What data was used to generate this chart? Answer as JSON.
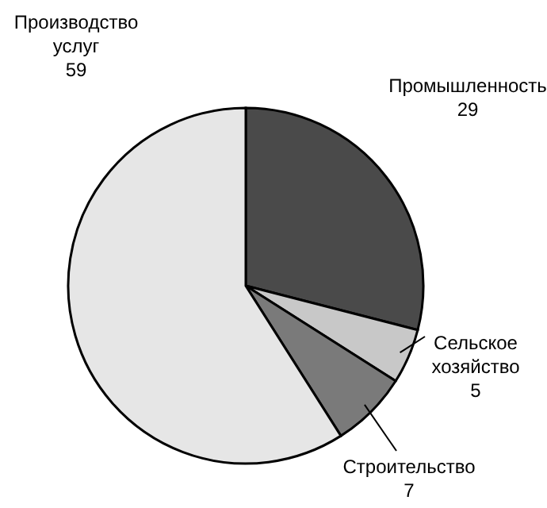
{
  "chart_data": {
    "type": "pie",
    "categories": [
      "Промышленность",
      "Сельское хозяйство",
      "Строительство",
      "Производство услуг"
    ],
    "values": [
      29,
      5,
      7,
      59
    ],
    "colors": [
      "#4a4a4a",
      "#c8c8c8",
      "#7a7a7a",
      "#e6e6e6"
    ],
    "data_labels": true
  }
}
